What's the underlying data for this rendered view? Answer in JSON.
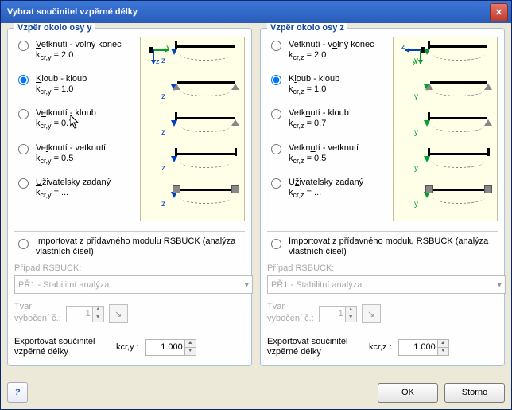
{
  "window": {
    "title": "Vybrat součinitel vzpěrné délky"
  },
  "footer": {
    "ok": "OK",
    "cancel": "Storno",
    "help": "?"
  },
  "panels": {
    "y": {
      "legend": "Vzpěr okolo osy y",
      "sub": "y",
      "options": [
        {
          "label": "Vetknutí - volný konec",
          "ul": "V",
          "coef": "kcr,y = 2.0",
          "selected": false
        },
        {
          "label": "Kloub - kloub",
          "ul": "K",
          "coef": "kcr,y = 1.0",
          "selected": true
        },
        {
          "label": "Vetknutí - kloub",
          "ul": "e",
          "coef": "kcr,y = 0.7",
          "selected": false
        },
        {
          "label": "Vetknutí - vetknutí",
          "ul": "t",
          "coef": "kcr,y = 0.5",
          "selected": false
        },
        {
          "label": "Uživatelsky zadaný",
          "ul": "U",
          "coef": "kcr,y = ...",
          "selected": false
        }
      ],
      "import": {
        "label": "Importovat z přídavného modulu RSBUCK (analýza vlastních čísel)",
        "checked": false
      },
      "case_label": "Případ RSBUCK:",
      "case_value": "PŘ1 - Stabilitní analýza",
      "shape_label1": "Tvar",
      "shape_label2": "vybočení č.:",
      "shape_value": "1",
      "export_label1": "Exportovat součinitel",
      "export_label2": "vzpěrné délky",
      "export_k": "kcr,y :",
      "export_value": "1.000",
      "axis_h": "y",
      "axis_v": "z",
      "beam_axis": "z"
    },
    "z": {
      "legend": "Vzpěr okolo osy z",
      "sub": "z",
      "options": [
        {
          "label": "Vetknutí - volný konec",
          "ul": "o",
          "coef": "kcr,z = 2.0",
          "selected": false
        },
        {
          "label": "Kloub - kloub",
          "ul": "l",
          "coef": "kcr,z = 1.0",
          "selected": true
        },
        {
          "label": "Vetknutí - kloub",
          "ul": "n",
          "coef": "kcr,z = 0.7",
          "selected": false
        },
        {
          "label": "Vetknutí - vetknutí",
          "ul": "u",
          "coef": "kcr,z = 0.5",
          "selected": false
        },
        {
          "label": "Uživatelsky zadaný",
          "ul": "ž",
          "coef": "kcr,z = ...",
          "selected": false
        }
      ],
      "import": {
        "label": "Importovat z přídavného modulu RSBUCK (analýza vlastních čísel)",
        "checked": false
      },
      "case_label": "Případ RSBUCK:",
      "case_value": "PŘ1 - Stabilitní analýza",
      "shape_label1": "Tvar",
      "shape_label2": "vybočení č.:",
      "shape_value": "1",
      "export_label1": "Exportovat součinitel",
      "export_label2": "vzpěrné délky",
      "export_k": "kcr,z :",
      "export_value": "1.000",
      "axis_h": "z",
      "axis_v": "y",
      "beam_axis": "y"
    }
  },
  "colors": {
    "accent": "#1a4aa0",
    "axis_blue": "#0040c0",
    "axis_green": "#00a030",
    "diagram_bg": "#ffffe8"
  }
}
